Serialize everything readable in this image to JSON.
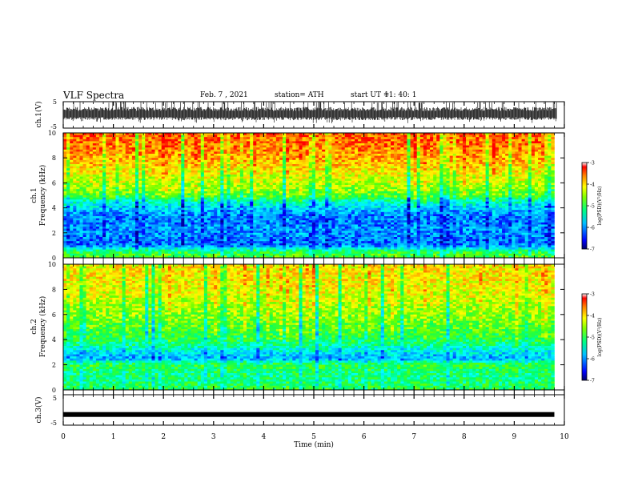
{
  "header": {
    "title": "VLF Spectra",
    "date": "Feb. 7 , 2021",
    "station": "station= ATH",
    "start_label": "start  UT =",
    "start_time": "11: 40: 1"
  },
  "colors": {
    "colormap": [
      "#000066",
      "#0000ff",
      "#00a0ff",
      "#00ffff",
      "#00ff66",
      "#66ff00",
      "#ffff00",
      "#ff9900",
      "#ff0000",
      "#ffffff"
    ]
  },
  "chart_data": [
    {
      "type": "line",
      "name": "ch1-waveform",
      "ylabel": "ch.1(V)",
      "ylim": [
        -5,
        5
      ],
      "yticks": [
        "5",
        "-5"
      ],
      "xlim": [
        0,
        10
      ],
      "description_of_signal": "noise band approx -2 to 3 V with frequent spikes to 5 V",
      "band": [
        -2,
        3
      ]
    },
    {
      "type": "heatmap",
      "name": "ch1-spectrogram",
      "ylabel": "Frequency (kHz)",
      "channel_label": "ch.1",
      "ylim": [
        0,
        10
      ],
      "yticks": [
        "0",
        "2",
        "4",
        "6",
        "8",
        "10"
      ],
      "xlim": [
        0,
        10
      ],
      "data_end_min": 9.8,
      "colorbar": {
        "label": "log(PSD)(V²/Hz)",
        "range": [
          -7,
          -3
        ],
        "ticks": [
          "-3",
          "-4",
          "-5",
          "-6",
          "-7"
        ]
      },
      "profile_khz": [
        0,
        0.5,
        1,
        1.5,
        2,
        2.5,
        3,
        3.5,
        4,
        4.5,
        5,
        6,
        7,
        8,
        9,
        10
      ],
      "profile_logpsd": [
        -4.6,
        -4.9,
        -6.1,
        -6.1,
        -6.0,
        -6.0,
        -6.1,
        -6.0,
        -5.7,
        -5.3,
        -4.6,
        -4.2,
        -3.9,
        -3.6,
        -3.4,
        -3.3
      ]
    },
    {
      "type": "heatmap",
      "name": "ch2-spectrogram",
      "ylabel": "Frequency (kHz)",
      "channel_label": "ch.2",
      "ylim": [
        0,
        10
      ],
      "yticks": [
        "0",
        "2",
        "4",
        "6",
        "8",
        "10"
      ],
      "xlim": [
        0,
        10
      ],
      "data_end_min": 9.8,
      "colorbar": {
        "label": "log(PSD)(V²/Hz)",
        "range": [
          -7,
          -3
        ],
        "ticks": [
          "-3",
          "-4",
          "-5",
          "-6",
          "-7"
        ]
      },
      "profile_khz": [
        0,
        0.5,
        1,
        1.5,
        2,
        2.5,
        3,
        3.5,
        4,
        5,
        6,
        7,
        8,
        9,
        10
      ],
      "profile_logpsd": [
        -4.8,
        -5.0,
        -5.1,
        -5.0,
        -4.8,
        -5.9,
        -5.6,
        -5.2,
        -4.9,
        -4.6,
        -4.4,
        -4.2,
        -4.0,
        -3.9,
        -3.9
      ]
    },
    {
      "type": "line",
      "name": "ch3-waveform",
      "ylabel": "ch.3(V)",
      "ylim": [
        -5,
        5
      ],
      "yticks": [
        "5",
        "-5"
      ],
      "xlim": [
        0,
        10
      ],
      "level": -1.5,
      "xlabel": "Time (min)",
      "xticks": [
        "0",
        "1",
        "2",
        "3",
        "4",
        "5",
        "6",
        "7",
        "8",
        "9",
        "10"
      ]
    }
  ]
}
